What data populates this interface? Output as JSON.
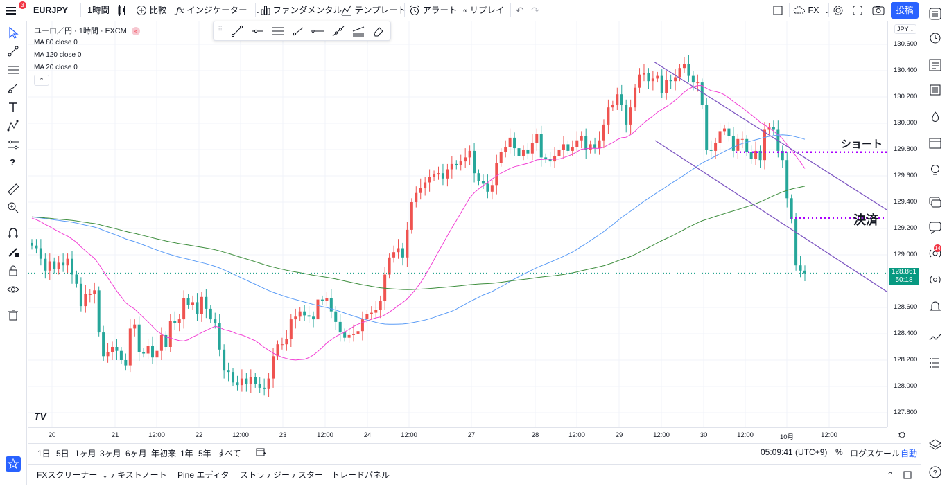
{
  "topbar": {
    "menu_badge": "3",
    "symbol": "EURJPY",
    "interval": "1時間",
    "compare": "比較",
    "indicators": "インジケーター",
    "fundamentals": "ファンダメンタル",
    "templates": "テンプレート",
    "alert": "アラート",
    "replay": "リプレイ",
    "fx_label": "FX",
    "publish": "投稿"
  },
  "legend": {
    "title": "ユーロ／円 · 1時間 · FXCM",
    "ma80": "MA 80 close 0",
    "ma120": "MA 120 close 0",
    "ma20": "MA 20 close 0"
  },
  "price_scale": {
    "currency": "JPY",
    "ticks": [
      "130.600",
      "130.400",
      "130.200",
      "130.000",
      "129.800",
      "129.600",
      "129.400",
      "129.200",
      "129.000",
      "128.600",
      "128.400",
      "128.200",
      "128.000",
      "127.800"
    ],
    "last_price": "128.861",
    "countdown": "50:18"
  },
  "time_scale": {
    "ticks": [
      "20",
      "21",
      "12:00",
      "22",
      "12:00",
      "23",
      "12:00",
      "24",
      "12:00",
      "27",
      "28",
      "12:00",
      "29",
      "12:00",
      "30",
      "12:00",
      "10月",
      "12:00"
    ]
  },
  "annotations": {
    "short": "ショート",
    "settle": "決済"
  },
  "bottom_ctrl": {
    "ranges": [
      "1日",
      "5日",
      "1ヶ月",
      "3ヶ月",
      "6ヶ月",
      "年初来",
      "1年",
      "5年",
      "すべて"
    ],
    "clock": "05:09:41 (UTC+9)",
    "percent": "%",
    "log": "ログスケール",
    "auto": "自動"
  },
  "bottom_tabs": [
    "FXスクリーナー",
    "テキストノート",
    "Pine エディタ",
    "ストラテジーテスター",
    "トレードパネル"
  ],
  "rightbar": {
    "notification_badge": "14"
  },
  "colors": {
    "up": "#ef5350",
    "down": "#26a69a",
    "ma20": "#f23fd4",
    "ma80": "#5b9cf6",
    "ma120": "#3e8e3e",
    "channel": "#7e57c2",
    "accent": "#2962ff",
    "current": "#089981"
  },
  "chart_data": {
    "type": "candlestick",
    "symbol": "EURJPY",
    "ylim": [
      127.7,
      130.75
    ],
    "candles_close": [
      129.07,
      129.05,
      128.97,
      128.88,
      128.95,
      128.89,
      128.94,
      128.92,
      128.97,
      128.85,
      128.78,
      128.61,
      128.7,
      128.7,
      128.73,
      128.41,
      128.23,
      128.26,
      128.3,
      128.27,
      128.2,
      128.16,
      128.44,
      128.47,
      128.26,
      128.25,
      128.31,
      128.22,
      128.27,
      128.39,
      128.3,
      128.5,
      128.48,
      128.51,
      128.67,
      128.62,
      128.64,
      128.55,
      128.68,
      128.59,
      128.51,
      128.48,
      128.28,
      128.12,
      128.11,
      128.03,
      128.01,
      128.06,
      128.02,
      128.07,
      128.02,
      127.99,
      127.98,
      128.06,
      128.23,
      128.32,
      128.32,
      128.36,
      128.51,
      128.53,
      128.57,
      128.54,
      128.53,
      128.51,
      128.66,
      128.65,
      128.67,
      128.57,
      128.49,
      128.41,
      128.37,
      128.39,
      128.4,
      128.42,
      128.51,
      128.55,
      128.56,
      128.58,
      128.65,
      128.85,
      128.98,
      129.02,
      129.05,
      128.98,
      129.19,
      129.4,
      129.47,
      129.51,
      129.55,
      129.59,
      129.61,
      129.62,
      129.58,
      129.65,
      129.69,
      129.68,
      129.71,
      129.74,
      129.79,
      129.62,
      129.56,
      129.54,
      129.48,
      129.53,
      129.7,
      129.78,
      129.82,
      129.89,
      129.81,
      129.75,
      129.8,
      129.77,
      129.85,
      129.92,
      129.74,
      129.73,
      129.71,
      129.75,
      129.8,
      129.84,
      129.79,
      129.82,
      129.87,
      129.9,
      129.8,
      129.84,
      129.81,
      129.87,
      129.99,
      130.12,
      130.14,
      130.22,
      130.14,
      129.99,
      130.12,
      130.27,
      130.37,
      130.38,
      130.32,
      130.34,
      130.36,
      130.23,
      130.33,
      130.32,
      130.35,
      130.42,
      130.45,
      130.36,
      130.31,
      130.31,
      130.14,
      129.8,
      129.79,
      129.85,
      129.94,
      129.96,
      129.9,
      129.79,
      129.88,
      129.88,
      129.78,
      129.73,
      129.79,
      129.72,
      129.95,
      129.97,
      129.95,
      129.79,
      129.72,
      129.43,
      129.27,
      128.92,
      128.88,
      128.86
    ],
    "ma_periods": [
      20,
      80,
      120
    ],
    "horizontal_lines": [
      {
        "label": "ショート",
        "price": 129.78
      },
      {
        "label": "決済",
        "price": 129.28
      }
    ],
    "current_price": 128.861
  }
}
